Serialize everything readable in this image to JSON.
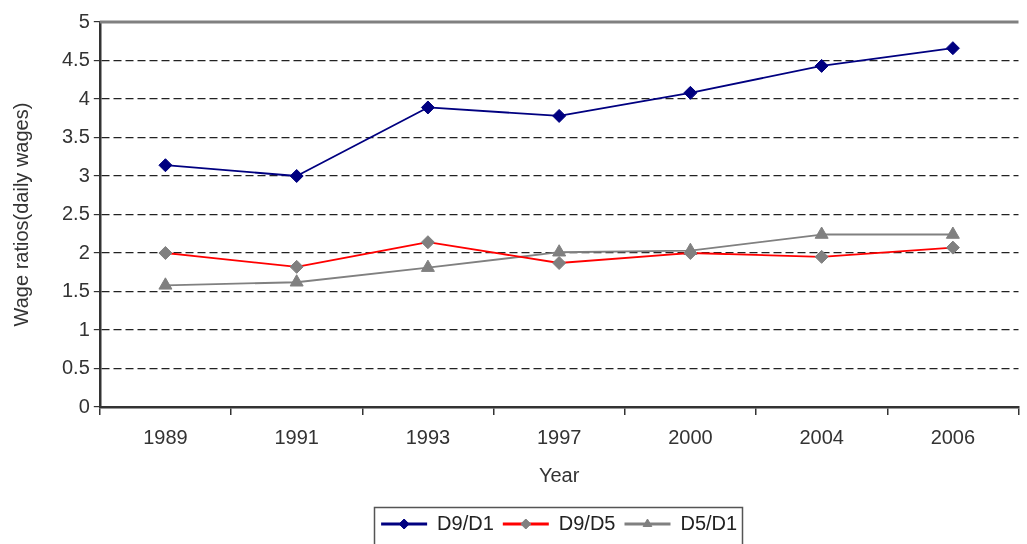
{
  "chart_data": {
    "type": "line",
    "categories": [
      "1989",
      "1991",
      "1993",
      "1997",
      "2000",
      "2004",
      "2006"
    ],
    "series": [
      {
        "name": "D9/D1",
        "color": "#000080",
        "marker": "diamond",
        "values": [
          3.14,
          3.0,
          3.89,
          3.78,
          4.08,
          4.43,
          4.66
        ]
      },
      {
        "name": "D9/D5",
        "color": "#ff0000",
        "colors": [
          "#808080",
          "#808080",
          "#808080",
          "#808080",
          "#808080",
          "#808080",
          "#808080"
        ],
        "marker": "diamond",
        "values": [
          2.0,
          1.82,
          2.14,
          1.87,
          2.0,
          1.95,
          2.07
        ]
      },
      {
        "name": "D5/D1",
        "color": "#808080",
        "marker": "triangle",
        "values": [
          1.58,
          1.62,
          1.81,
          2.01,
          2.03,
          2.24,
          2.24
        ]
      }
    ],
    "xlabel": "Year",
    "ylabel": "Wage ratios(daily wages)",
    "ylim": [
      0,
      5
    ],
    "yticks": [
      0,
      0.5,
      1,
      1.5,
      2,
      2.5,
      3,
      3.5,
      4,
      4.5,
      5
    ],
    "grid": "y",
    "legend": "bottom",
    "line_style": "solid"
  }
}
